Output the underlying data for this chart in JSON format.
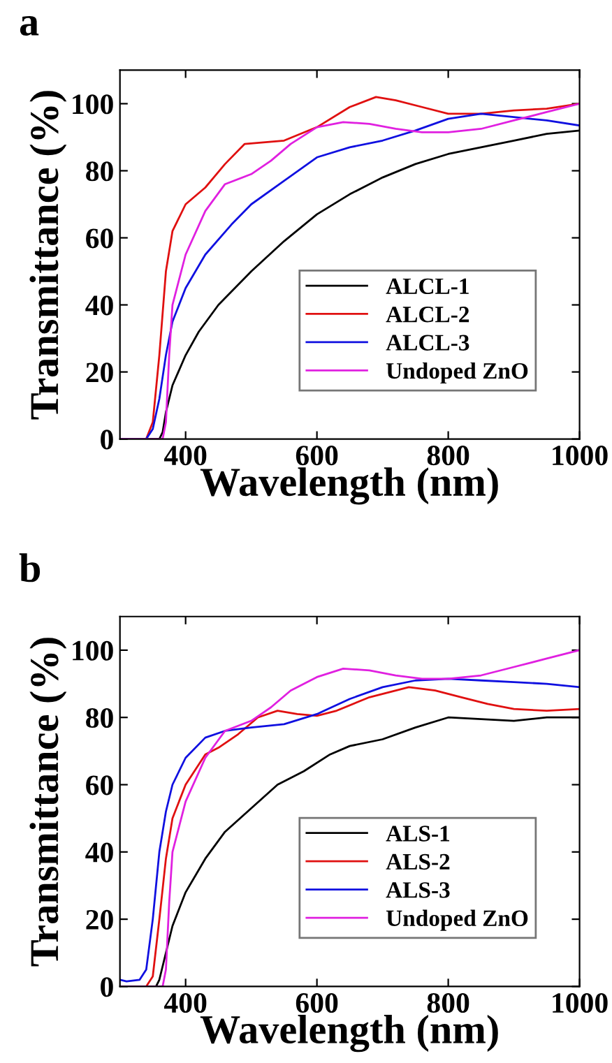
{
  "chart_data": [
    {
      "type": "line",
      "title": "a",
      "xlabel": "Wavelength (nm)",
      "ylabel": "Transmittance (%)",
      "xlim": [
        300,
        1000
      ],
      "ylim": [
        0,
        110
      ],
      "xticks": [
        400,
        600,
        800,
        1000
      ],
      "yticks": [
        0,
        20,
        40,
        60,
        80,
        100
      ],
      "grid": false,
      "legend": "bottom right",
      "marker": "none",
      "line_style": "solid",
      "series": [
        {
          "name": "ALCL-1",
          "color": "#000000",
          "x": [
            300,
            350,
            360,
            365,
            370,
            380,
            400,
            420,
            450,
            500,
            550,
            600,
            650,
            700,
            750,
            800,
            850,
            900,
            950,
            1000
          ],
          "values": [
            0,
            0,
            0,
            2,
            8,
            16,
            25,
            32,
            40,
            50,
            59,
            67,
            73,
            78,
            82,
            85,
            87,
            89,
            91,
            92
          ]
        },
        {
          "name": "ALCL-2",
          "color": "#e01010",
          "x": [
            300,
            340,
            350,
            360,
            370,
            380,
            400,
            430,
            460,
            490,
            550,
            600,
            650,
            690,
            720,
            760,
            800,
            850,
            900,
            950,
            1000
          ],
          "values": [
            0,
            0,
            5,
            25,
            50,
            62,
            70,
            75,
            82,
            88,
            89,
            93,
            99,
            102,
            101,
            99,
            97,
            97,
            98,
            98.5,
            100
          ]
        },
        {
          "name": "ALCL-3",
          "color": "#1010e0",
          "x": [
            300,
            340,
            350,
            360,
            370,
            380,
            400,
            430,
            470,
            500,
            550,
            600,
            650,
            700,
            750,
            800,
            850,
            900,
            950,
            1000
          ],
          "values": [
            0,
            0,
            3,
            12,
            25,
            35,
            45,
            55,
            64,
            70,
            77,
            84,
            87,
            89,
            92,
            95.5,
            97,
            96,
            95,
            93.5
          ]
        },
        {
          "name": "Undoped ZnO",
          "color": "#e020e0",
          "x": [
            300,
            365,
            370,
            375,
            380,
            400,
            430,
            460,
            500,
            530,
            560,
            600,
            640,
            680,
            720,
            760,
            800,
            850,
            900,
            950,
            1000
          ],
          "values": [
            0,
            0,
            5,
            25,
            40,
            55,
            68,
            76,
            79,
            83,
            88,
            93,
            94.5,
            94,
            92.5,
            91.5,
            91.5,
            92.5,
            95,
            97.5,
            100
          ]
        }
      ]
    },
    {
      "type": "line",
      "title": "b",
      "xlabel": "Wavelength (nm)",
      "ylabel": "Transmittance (%)",
      "xlim": [
        300,
        1000
      ],
      "ylim": [
        0,
        110
      ],
      "xticks": [
        400,
        600,
        800,
        1000
      ],
      "yticks": [
        0,
        20,
        40,
        60,
        80,
        100
      ],
      "grid": false,
      "legend": "bottom right",
      "marker": "none",
      "line_style": "solid",
      "series": [
        {
          "name": "ALS-1",
          "color": "#000000",
          "x": [
            300,
            355,
            360,
            370,
            380,
            400,
            430,
            460,
            500,
            540,
            580,
            620,
            650,
            700,
            750,
            800,
            850,
            900,
            950,
            1000
          ],
          "values": [
            0,
            0,
            2,
            10,
            18,
            28,
            38,
            46,
            53,
            60,
            64,
            69,
            71.5,
            73.5,
            77,
            80,
            79.5,
            79,
            80,
            80
          ]
        },
        {
          "name": "ALS-2",
          "color": "#e01010",
          "x": [
            300,
            340,
            350,
            360,
            370,
            380,
            400,
            430,
            450,
            480,
            510,
            540,
            570,
            600,
            630,
            680,
            740,
            780,
            820,
            860,
            900,
            950,
            1000
          ],
          "values": [
            0,
            0,
            3,
            20,
            38,
            50,
            60,
            69,
            71,
            75,
            80,
            82,
            81,
            80.5,
            82,
            86,
            89,
            88,
            86,
            84,
            82.5,
            82,
            82.5
          ]
        },
        {
          "name": "ALS-3",
          "color": "#1010e0",
          "x": [
            300,
            310,
            330,
            340,
            350,
            360,
            370,
            380,
            400,
            430,
            460,
            500,
            550,
            600,
            650,
            700,
            750,
            800,
            850,
            900,
            950,
            1000
          ],
          "values": [
            2,
            1.5,
            2,
            5,
            20,
            40,
            52,
            60,
            68,
            74,
            76,
            77,
            78,
            81,
            85.5,
            89,
            91,
            91.5,
            91,
            90.5,
            90,
            89
          ]
        },
        {
          "name": "Undoped ZnO",
          "color": "#e020e0",
          "x": [
            300,
            365,
            370,
            375,
            380,
            400,
            430,
            460,
            500,
            530,
            560,
            600,
            640,
            680,
            720,
            760,
            800,
            850,
            900,
            950,
            1000
          ],
          "values": [
            0,
            0,
            5,
            25,
            40,
            55,
            68,
            76,
            79,
            83,
            88,
            92,
            94.5,
            94,
            92.5,
            91.5,
            91.5,
            92.5,
            95,
            97.5,
            100
          ]
        }
      ]
    }
  ]
}
